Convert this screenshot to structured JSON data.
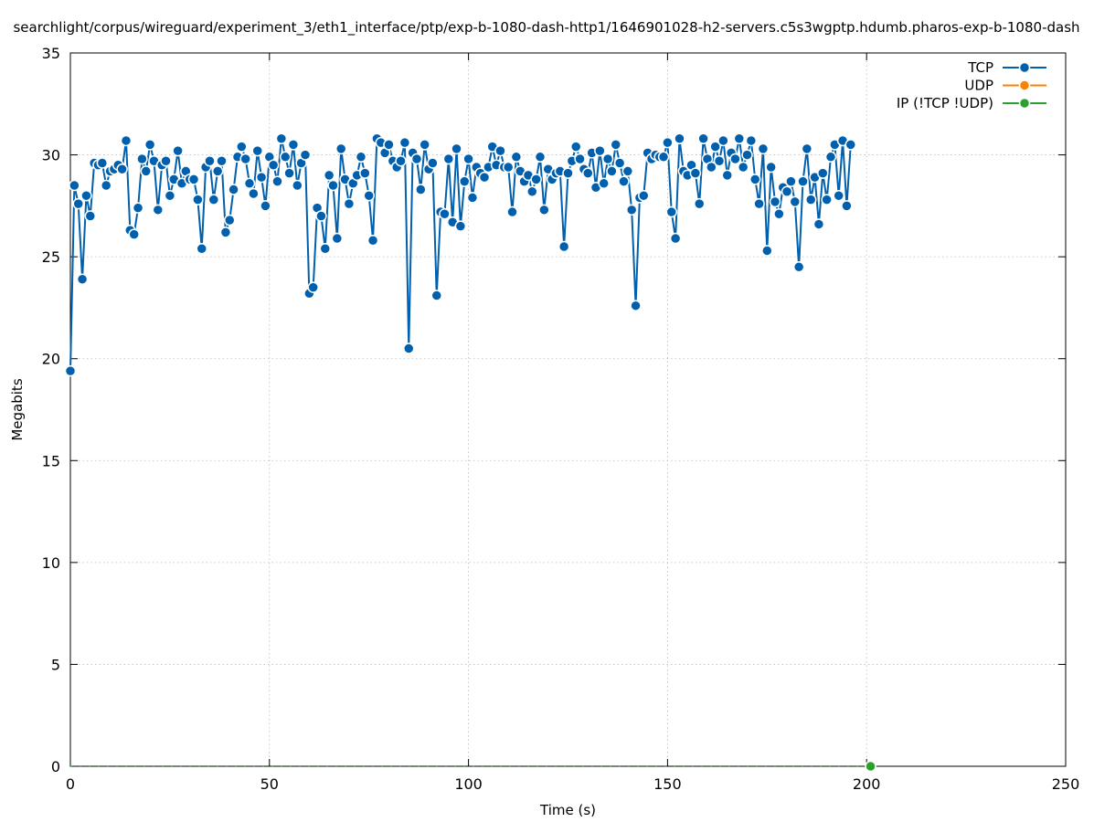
{
  "chart_data": {
    "type": "line",
    "title": "searchlight/corpus/wireguard/experiment_3/eth1_interface/ptp/exp-b-1080-dash-http1/1646901028-h2-servers.c5s3wgptp.hdumb.pharos-exp-b-1080-dash",
    "xlabel": "Time (s)",
    "ylabel": "Megabits",
    "xlim": [
      0,
      250
    ],
    "ylim": [
      0,
      35
    ],
    "x_ticks": [
      "0",
      "50",
      "100",
      "150",
      "200",
      "250"
    ],
    "y_ticks": [
      "0",
      "5",
      "10",
      "15",
      "20",
      "25",
      "30",
      "35"
    ],
    "grid": true,
    "legend_position": "top-right",
    "series": [
      {
        "name": "TCP",
        "color": "#0060ad",
        "values": [
          19.4,
          28.5,
          27.6,
          23.9,
          28.0,
          27.0,
          29.6,
          29.5,
          29.6,
          28.5,
          29.2,
          29.3,
          29.5,
          29.3,
          30.7,
          26.3,
          26.1,
          27.4,
          29.8,
          29.2,
          30.5,
          29.7,
          27.3,
          29.5,
          29.7,
          28.0,
          28.8,
          30.2,
          28.6,
          29.2,
          28.8,
          28.8,
          27.8,
          25.4,
          29.4,
          29.7,
          27.8,
          29.2,
          29.7,
          26.2,
          26.8,
          28.3,
          29.9,
          30.4,
          29.8,
          28.6,
          28.1,
          30.2,
          28.9,
          27.5,
          29.9,
          29.5,
          28.7,
          30.8,
          29.9,
          29.1,
          30.5,
          28.5,
          29.6,
          30.0,
          23.2,
          23.5,
          27.4,
          27.0,
          25.4,
          29.0,
          28.5,
          25.9,
          30.3,
          28.8,
          27.6,
          28.6,
          29.0,
          29.9,
          29.1,
          28.0,
          25.8,
          30.8,
          30.6,
          30.1,
          30.5,
          29.7,
          29.4,
          29.7,
          30.6,
          20.5,
          30.1,
          29.8,
          28.3,
          30.5,
          29.3,
          29.6,
          23.1,
          27.2,
          27.1,
          29.8,
          26.7,
          30.3,
          26.5,
          28.7,
          29.8,
          27.9,
          29.4,
          29.1,
          28.9,
          29.4,
          30.4,
          29.5,
          30.2,
          29.4,
          29.4,
          27.2,
          29.9,
          29.2,
          28.7,
          29.0,
          28.2,
          28.8,
          29.9,
          27.3,
          29.3,
          28.8,
          29.1,
          29.2,
          25.5,
          29.1,
          29.7,
          30.4,
          29.8,
          29.3,
          29.1,
          30.1,
          28.4,
          30.2,
          28.6,
          29.8,
          29.2,
          30.5,
          29.6,
          28.7,
          29.2,
          27.3,
          22.6,
          27.9,
          28.0,
          30.1,
          29.8,
          30.0,
          29.9,
          29.9,
          30.6,
          27.2,
          25.9,
          30.8,
          29.2,
          29.0,
          29.5,
          29.1,
          27.6,
          30.8,
          29.8,
          29.4,
          30.4,
          29.7,
          30.7,
          29.0,
          30.1,
          29.8,
          30.8,
          29.4,
          30.0,
          30.7,
          28.8,
          27.6,
          30.3,
          25.3,
          29.4,
          27.7,
          27.1,
          28.4,
          28.2,
          28.7,
          27.7,
          24.5,
          28.7,
          30.3,
          27.8,
          28.9,
          26.6,
          29.1,
          27.8,
          29.9,
          30.5,
          28.0,
          30.7,
          27.5,
          30.5
        ]
      },
      {
        "name": "UDP",
        "color": "#ff8000",
        "values": []
      },
      {
        "name": "IP (!TCP  !UDP)",
        "color": "#2ca02c",
        "values": [
          0
        ]
      }
    ]
  }
}
